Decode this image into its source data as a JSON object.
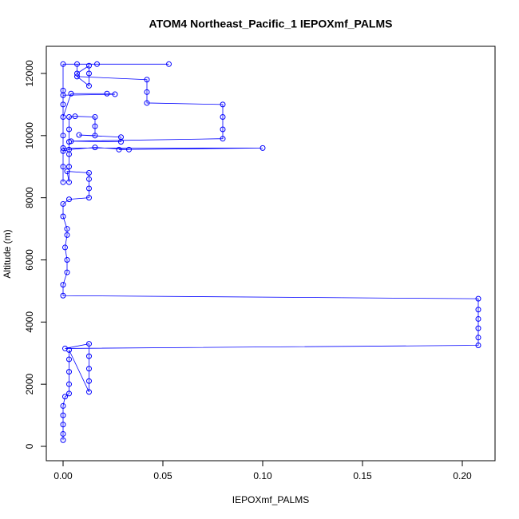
{
  "chart_data": {
    "type": "scatter",
    "title": "ATOM4 Northeast_Pacific_1 IEPOXmf_PALMS",
    "x_label": "IEPOXmf_PALMS",
    "y_label": "Altitude (m)",
    "xlim": [
      -0.0084,
      0.2164
    ],
    "ylim": [
      -462,
      12873
    ],
    "xticks": [
      {
        "value": 0,
        "label": "0.00"
      },
      {
        "value": 0.05,
        "label": "0.05"
      },
      {
        "value": 0.1,
        "label": "0.10"
      },
      {
        "value": 0.15,
        "label": "0.15"
      },
      {
        "value": 0.2,
        "label": "0.20"
      }
    ],
    "yticks": [
      0,
      2000,
      4000,
      6000,
      8000,
      10000,
      12000
    ],
    "color": "#0000ff",
    "x": [
      0,
      0,
      0,
      0,
      0,
      0.001,
      0.003,
      0.003,
      0.003,
      0.003,
      0.003,
      0.013,
      0.013,
      0.013,
      0.013,
      0.013,
      0.001,
      0.208,
      0.208,
      0.208,
      0.208,
      0.208,
      0.208,
      0,
      0,
      0.002,
      0.002,
      0.001,
      0.002,
      0.002,
      0,
      0,
      0.003,
      0.013,
      0.013,
      0.013,
      0.013,
      0.002,
      0.003,
      0.003,
      0.003,
      0.003,
      0.003,
      0.003,
      0.006,
      0.016,
      0.016,
      0.016,
      0.008,
      0.029,
      0.029,
      0.004,
      0.08,
      0.08,
      0.08,
      0.08,
      0.042,
      0.042,
      0.042,
      0.007,
      0.013,
      0.013,
      0.013,
      0.007,
      0.007,
      0.017,
      0.053,
      0,
      0,
      0,
      0,
      0.004,
      0.022,
      0.026,
      0,
      0,
      0,
      0.1,
      0.028,
      0.033,
      0.016,
      0.003,
      0,
      0,
      0
    ],
    "y": [
      200,
      400,
      700,
      1000,
      1300,
      1600,
      1700,
      2000,
      2400,
      2800,
      3100,
      1750,
      2100,
      2500,
      2900,
      3300,
      3150,
      3250,
      3500,
      3800,
      4100,
      4400,
      4750,
      4850,
      5200,
      5600,
      6000,
      6400,
      6800,
      7000,
      7400,
      7800,
      7950,
      8000,
      8300,
      8600,
      8800,
      8850,
      8500,
      9000,
      9400,
      9800,
      10200,
      10600,
      10620,
      10600,
      10300,
      10000,
      10020,
      9950,
      9800,
      9820,
      9900,
      10200,
      10600,
      11000,
      11050,
      11400,
      11800,
      11900,
      11600,
      12000,
      12250,
      12000,
      12300,
      12300,
      12300,
      12300,
      11450,
      11000,
      10600,
      11350,
      11350,
      11330,
      11300,
      10000,
      9600,
      9600,
      9550,
      9550,
      9620,
      9550,
      9500,
      9000,
      8500
    ]
  }
}
